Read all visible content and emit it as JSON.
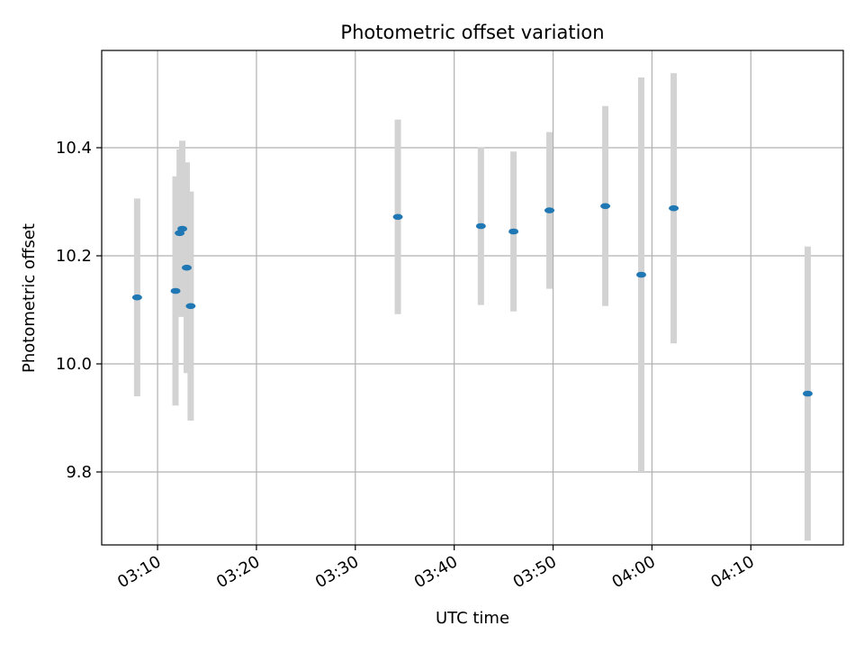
{
  "chart_data": {
    "type": "scatter",
    "title": "Photometric offset variation",
    "xlabel": "UTC time",
    "ylabel": "Photometric offset",
    "x_ticks": [
      "03:10",
      "03:20",
      "03:30",
      "03:40",
      "03:50",
      "04:00",
      "04:10"
    ],
    "y_ticks": [
      "9.8",
      "10.0",
      "10.2",
      "10.4"
    ],
    "xlim": [
      "03:04:21",
      "04:19:21"
    ],
    "ylim": [
      9.665,
      10.58
    ],
    "grid": true,
    "legend": false,
    "marker_color": "#1f77b4",
    "errorbar_color": "#d3d3d3",
    "points": [
      {
        "time": "03:07:56",
        "y": 10.123,
        "err": 0.183
      },
      {
        "time": "03:11:49",
        "y": 10.135,
        "err": 0.212
      },
      {
        "time": "03:12:14",
        "y": 10.242,
        "err": 0.155
      },
      {
        "time": "03:12:30",
        "y": 10.25,
        "err": 0.163
      },
      {
        "time": "03:12:57",
        "y": 10.178,
        "err": 0.195
      },
      {
        "time": "03:13:21",
        "y": 10.107,
        "err": 0.212
      },
      {
        "time": "03:34:18",
        "y": 10.272,
        "err": 0.18
      },
      {
        "time": "03:42:42",
        "y": 10.255,
        "err": 0.146
      },
      {
        "time": "03:46:00",
        "y": 10.245,
        "err": 0.148
      },
      {
        "time": "03:49:38",
        "y": 10.284,
        "err": 0.145
      },
      {
        "time": "03:55:17",
        "y": 10.292,
        "err": 0.185
      },
      {
        "time": "03:58:55",
        "y": 10.165,
        "err": 0.365
      },
      {
        "time": "04:02:12",
        "y": 10.288,
        "err": 0.25
      },
      {
        "time": "04:15:45",
        "y": 9.945,
        "err": 0.272
      }
    ]
  }
}
